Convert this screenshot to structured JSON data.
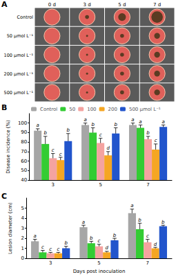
{
  "panel_a": {
    "label": "A",
    "columns": [
      "0 d",
      "3 d",
      "5 d",
      "7 d"
    ],
    "rows": [
      "Control",
      "50 μmol L⁻¹",
      "100 μmol L⁻¹",
      "200 μmol L⁻¹",
      "500 μmol L⁻¹"
    ]
  },
  "chart_data": [
    {
      "panel": "B",
      "type": "bar",
      "categories": [
        "3",
        "5",
        "7"
      ],
      "y_label": "Disease incidence (%)",
      "ylim": [
        40,
        110
      ],
      "yticks": [
        40,
        50,
        60,
        70,
        80,
        90,
        100
      ],
      "legend": "top",
      "series": [
        {
          "name": "Control",
          "color": "#a6a6a6",
          "values": [
            92,
            98,
            98
          ],
          "errors": [
            2,
            2,
            2
          ],
          "letters": [
            "a",
            "a",
            "a"
          ]
        },
        {
          "name": "50",
          "color": "#33cc33",
          "values": [
            78,
            90,
            95
          ],
          "errors": [
            8,
            5,
            3
          ],
          "letters": [
            "b",
            "b",
            "a"
          ]
        },
        {
          "name": "100",
          "color": "#f4a3a0",
          "values": [
            63,
            79,
            83
          ],
          "errors": [
            5,
            5,
            3
          ],
          "letters": [
            "c",
            "c",
            "b"
          ]
        },
        {
          "name": "200",
          "color": "#f5a623",
          "values": [
            61,
            66,
            72
          ],
          "errors": [
            3,
            4,
            6
          ],
          "letters": [
            "c",
            "d",
            "c"
          ]
        },
        {
          "name": "500 μmol L⁻¹",
          "color": "#2255cc",
          "values": [
            81,
            89,
            96
          ],
          "errors": [
            8,
            6,
            2
          ],
          "letters": [
            "b",
            "b",
            "a"
          ]
        }
      ]
    },
    {
      "panel": "C",
      "type": "bar",
      "categories": [
        "3",
        "5",
        "7"
      ],
      "x_label": "Days post inoculation",
      "y_label": "Lesion diameter (cm)",
      "ylim": [
        0,
        6
      ],
      "yticks": [
        0,
        1,
        2,
        3,
        4,
        5
      ],
      "series": [
        {
          "color": "#a6a6a6",
          "values": [
            1.7,
            3.1,
            4.5
          ],
          "errors": [
            0.2,
            0.2,
            0.4
          ],
          "letters": [
            "a",
            "a",
            "a"
          ]
        },
        {
          "color": "#33cc33",
          "values": [
            0.6,
            1.5,
            2.9
          ],
          "errors": [
            0.2,
            0.2,
            0.6
          ],
          "letters": [
            "c",
            "b",
            "b"
          ]
        },
        {
          "color": "#f4a3a0",
          "values": [
            0.5,
            1.2,
            1.6
          ],
          "errors": [
            0.1,
            0.2,
            0.3
          ],
          "letters": [
            "c",
            "c",
            "c"
          ]
        },
        {
          "color": "#f5a623",
          "values": [
            0.5,
            0.6,
            1.0
          ],
          "errors": [
            0.1,
            0.1,
            0.1
          ],
          "letters": [
            "c",
            "d",
            "d"
          ]
        },
        {
          "color": "#2255cc",
          "values": [
            1.0,
            1.8,
            3.2
          ],
          "errors": [
            0.2,
            0.2,
            0.1
          ],
          "letters": [
            "b",
            "b",
            "b"
          ]
        }
      ]
    }
  ]
}
